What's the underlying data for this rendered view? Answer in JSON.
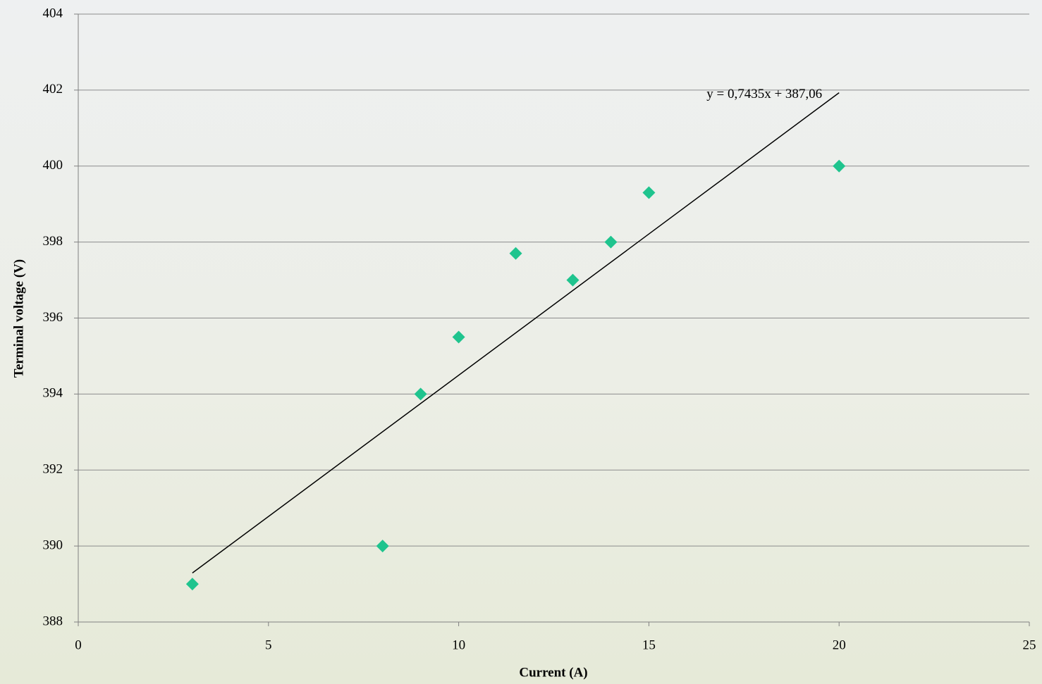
{
  "chart_data": {
    "type": "scatter",
    "x_label": "Current (A)",
    "y_label": "Terminal voltage (V)",
    "series": [
      {
        "x": [
          3,
          8,
          9,
          10,
          11.5,
          13,
          14,
          15,
          20
        ],
        "values": [
          389,
          390,
          394,
          395.5,
          397.7,
          397,
          398,
          399.3,
          400
        ],
        "color": "#1fc48e"
      }
    ],
    "trendline": {
      "label": "y = 0,7435x + 387,06",
      "slope": 0.7435,
      "intercept": 387.06,
      "color": "#000000"
    },
    "xlim": [
      0,
      25
    ],
    "xticks": [
      0,
      5,
      10,
      15,
      20,
      25
    ],
    "ylim": [
      388,
      404
    ],
    "yticks": [
      388,
      390,
      392,
      394,
      396,
      398,
      400,
      402,
      404
    ],
    "grid": true
  }
}
